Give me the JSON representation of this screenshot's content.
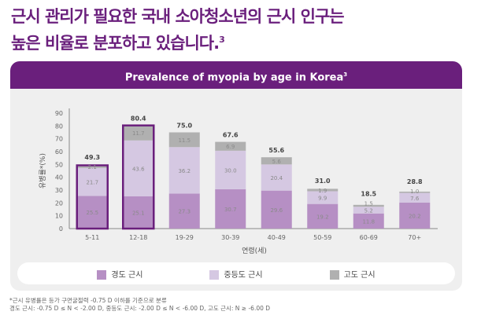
{
  "heading": {
    "line1": "근시 관리가 필요한 국내 소아청소년의 근시 인구는",
    "line2": "높은 비율로 분포하고 있습니다.",
    "ref": "3"
  },
  "chart_data": {
    "type": "bar",
    "stacked": true,
    "title": "Prevalence of myopia by age in Korea",
    "title_ref": "3",
    "xlabel": "연령(세)",
    "ylabel": "유병률*(%)",
    "ylim": [
      0,
      90
    ],
    "yticks": [
      0,
      10,
      20,
      30,
      40,
      50,
      60,
      70,
      80,
      90
    ],
    "categories": [
      "5-11",
      "12-18",
      "19-29",
      "30-39",
      "40-49",
      "50-59",
      "60-69",
      "70+"
    ],
    "highlighted": [
      "5-11",
      "12-18"
    ],
    "series": [
      {
        "name": "경도 근시",
        "color": "#b68fc4",
        "values": [
          25.5,
          25.1,
          27.3,
          30.7,
          29.6,
          19.2,
          11.8,
          20.2
        ]
      },
      {
        "name": "중등도 근시",
        "color": "#d5c8e2",
        "values": [
          21.7,
          43.6,
          36.2,
          30.0,
          20.4,
          9.9,
          5.2,
          7.6
        ]
      },
      {
        "name": "고도 근시",
        "color": "#b0b0b0",
        "values": [
          2.1,
          11.7,
          11.5,
          6.9,
          5.6,
          1.9,
          1.5,
          1.0
        ]
      }
    ],
    "totals": [
      "49.3",
      "80.4",
      "75.0",
      "67.6",
      "55.6",
      "31.0",
      "18.5",
      "28.8"
    ],
    "highlight_color": "#6a1f7c",
    "legend_position": "bottom"
  },
  "footnotes": [
    "*근시 유병률은 등가 구면굴절력 -0.75 D 이하를 기준으로 분류",
    "경도 근시: -0.75 D ≤ N < -2.00 D, 중등도 근시: -2.00 D ≤ N < -6.00 D, 고도 근시: N ≥ -6.00 D"
  ]
}
